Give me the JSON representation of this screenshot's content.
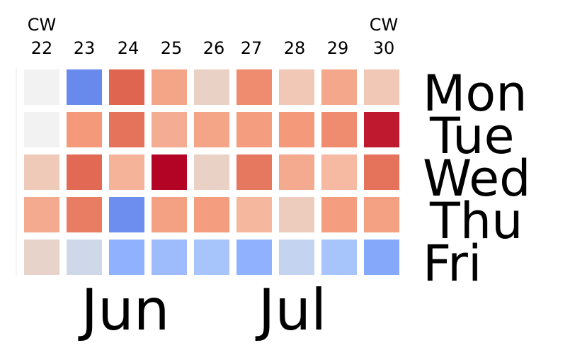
{
  "chart_data": {
    "type": "heatmap",
    "colormap": "coolwarm",
    "week_prefix": "CW",
    "weeks": [
      "22",
      "23",
      "24",
      "25",
      "26",
      "27",
      "28",
      "29",
      "30"
    ],
    "days": [
      "Mon",
      "Tue",
      "Wed",
      "Thu",
      "Fri"
    ],
    "months": [
      {
        "label": "Jun"
      },
      {
        "label": "Jul"
      }
    ],
    "values": [
      [
        0.52,
        0.15,
        0.86,
        0.72,
        0.56,
        0.78,
        0.6,
        0.71,
        0.6
      ],
      [
        0.52,
        0.75,
        0.83,
        0.69,
        0.72,
        0.74,
        0.75,
        0.78,
        0.97
      ],
      [
        0.59,
        0.85,
        0.67,
        1.0,
        0.56,
        0.82,
        0.7,
        0.65,
        0.83
      ],
      [
        0.7,
        0.81,
        0.16,
        0.73,
        0.74,
        0.66,
        0.58,
        0.74,
        0.73
      ],
      [
        0.55,
        0.45,
        0.26,
        0.3,
        0.33,
        0.26,
        0.42,
        0.33,
        0.23
      ]
    ],
    "grid": false,
    "legend": false
  }
}
